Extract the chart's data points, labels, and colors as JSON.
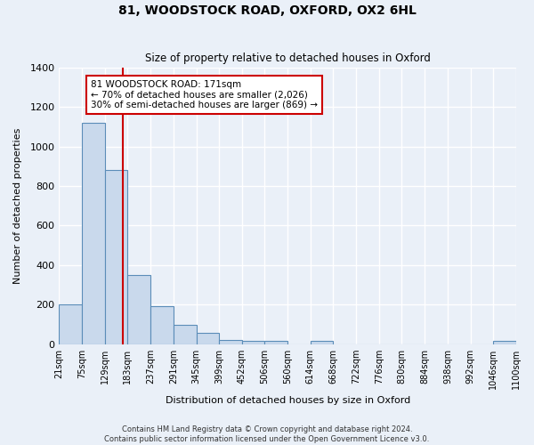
{
  "title": "81, WOODSTOCK ROAD, OXFORD, OX2 6HL",
  "subtitle": "Size of property relative to detached houses in Oxford",
  "xlabel": "Distribution of detached houses by size in Oxford",
  "ylabel": "Number of detached properties",
  "bin_labels": [
    "21sqm",
    "75sqm",
    "129sqm",
    "183sqm",
    "237sqm",
    "291sqm",
    "345sqm",
    "399sqm",
    "452sqm",
    "506sqm",
    "560sqm",
    "614sqm",
    "668sqm",
    "722sqm",
    "776sqm",
    "830sqm",
    "884sqm",
    "938sqm",
    "992sqm",
    "1046sqm",
    "1100sqm"
  ],
  "bar_heights": [
    200,
    1120,
    880,
    350,
    193,
    95,
    55,
    20,
    15,
    15,
    0,
    15,
    0,
    0,
    0,
    0,
    0,
    0,
    0,
    15
  ],
  "bar_color": "#c9d9ec",
  "bar_edge_color": "#5b8db8",
  "background_color": "#eaf0f8",
  "grid_color": "#ffffff",
  "property_value": 171,
  "bin_edges": [
    21,
    75,
    129,
    183,
    237,
    291,
    345,
    399,
    452,
    506,
    560,
    614,
    668,
    722,
    776,
    830,
    884,
    938,
    992,
    1046,
    1100
  ],
  "property_line_label": "81 WOODSTOCK ROAD: 171sqm",
  "annotation_line1": "← 70% of detached houses are smaller (2,026)",
  "annotation_line2": "30% of semi-detached houses are larger (869) →",
  "annotation_box_color": "#ffffff",
  "annotation_box_edge": "#cc0000",
  "red_line_color": "#cc0000",
  "ylim": [
    0,
    1400
  ],
  "yticks": [
    0,
    200,
    400,
    600,
    800,
    1000,
    1200,
    1400
  ],
  "footer_line1": "Contains HM Land Registry data © Crown copyright and database right 2024.",
  "footer_line2": "Contains public sector information licensed under the Open Government Licence v3.0."
}
